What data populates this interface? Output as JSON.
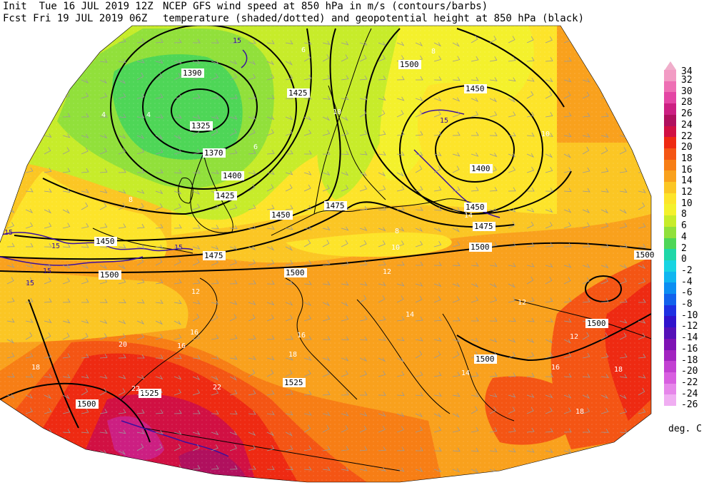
{
  "header": {
    "init_line": "Init  Tue 16 JUL 2019 12Z",
    "fcst_line": "Fcst Fri 19 JUL 2019 06Z",
    "title_line": "NCEP GFS wind speed at 850 hPa in m/s (contours/barbs)",
    "subtitle_line": "temperature (shaded/dotted) and geopotential height at 850 hPa (black)"
  },
  "colorbar": {
    "top_label": "34",
    "levels": [
      {
        "label": "32",
        "color": "#f29bc4"
      },
      {
        "label": "30",
        "color": "#ee6fb4"
      },
      {
        "label": "28",
        "color": "#e445a4"
      },
      {
        "label": "26",
        "color": "#cc1f82"
      },
      {
        "label": "24",
        "color": "#b0105e"
      },
      {
        "label": "22",
        "color": "#d11043"
      },
      {
        "label": "20",
        "color": "#ee2a12"
      },
      {
        "label": "18",
        "color": "#f45514"
      },
      {
        "label": "16",
        "color": "#f77e15"
      },
      {
        "label": "14",
        "color": "#f9a11d"
      },
      {
        "label": "12",
        "color": "#fbc624"
      },
      {
        "label": "10",
        "color": "#fde42a"
      },
      {
        "label": "8",
        "color": "#f4f12c"
      },
      {
        "label": "6",
        "color": "#c7ec2a"
      },
      {
        "label": "4",
        "color": "#91e03b"
      },
      {
        "label": "2",
        "color": "#4ed657"
      },
      {
        "label": "0",
        "color": "#1fd7a8"
      },
      {
        "label": "-2",
        "color": "#18d4e2"
      },
      {
        "label": "-4",
        "color": "#10b6f0"
      },
      {
        "label": "-6",
        "color": "#0c8ef2"
      },
      {
        "label": "-8",
        "color": "#1262ec"
      },
      {
        "label": "-10",
        "color": "#1e30e2"
      },
      {
        "label": "-12",
        "color": "#3012cc"
      },
      {
        "label": "-14",
        "color": "#5510b8"
      },
      {
        "label": "-16",
        "color": "#7e12b4"
      },
      {
        "label": "-18",
        "color": "#a224c0"
      },
      {
        "label": "-20",
        "color": "#c240d2"
      },
      {
        "label": "-22",
        "color": "#d85ee0"
      },
      {
        "label": "-24",
        "color": "#e686ea"
      },
      {
        "label": "-26",
        "color": "#f0aef2"
      }
    ],
    "units": "deg. C"
  },
  "map": {
    "height_labels": [
      {
        "text": "1390"
      },
      {
        "text": "1325"
      },
      {
        "text": "1370"
      },
      {
        "text": "1400"
      },
      {
        "text": "1425"
      },
      {
        "text": "1425"
      },
      {
        "text": "1450"
      },
      {
        "text": "1450"
      },
      {
        "text": "1475"
      },
      {
        "text": "1500"
      },
      {
        "text": "1500"
      },
      {
        "text": "1475"
      },
      {
        "text": "1500"
      },
      {
        "text": "1450"
      },
      {
        "text": "1400"
      },
      {
        "text": "1450"
      },
      {
        "text": "1475"
      },
      {
        "text": "1500"
      },
      {
        "text": "1500"
      },
      {
        "text": "1500"
      },
      {
        "text": "1525"
      },
      {
        "text": "1525"
      },
      {
        "text": "1500"
      },
      {
        "text": "1500"
      }
    ],
    "temp_labels": [
      {
        "text": "6"
      },
      {
        "text": "4"
      },
      {
        "text": "4"
      },
      {
        "text": "6"
      },
      {
        "text": "10"
      },
      {
        "text": "8"
      },
      {
        "text": "8"
      },
      {
        "text": "10"
      },
      {
        "text": "12"
      },
      {
        "text": "12"
      },
      {
        "text": "14"
      },
      {
        "text": "16"
      },
      {
        "text": "16"
      },
      {
        "text": "16"
      },
      {
        "text": "18"
      },
      {
        "text": "20"
      },
      {
        "text": "20"
      },
      {
        "text": "22"
      },
      {
        "text": "22"
      },
      {
        "text": "12"
      },
      {
        "text": "14"
      },
      {
        "text": "16"
      },
      {
        "text": "18"
      },
      {
        "text": "18"
      },
      {
        "text": "12"
      },
      {
        "text": "8"
      },
      {
        "text": "16"
      },
      {
        "text": "18"
      },
      {
        "text": "10"
      },
      {
        "text": "14"
      }
    ],
    "wind_labels": [
      {
        "text": "15"
      },
      {
        "text": "15"
      },
      {
        "text": "15"
      },
      {
        "text": "15"
      },
      {
        "text": "15"
      },
      {
        "text": "15"
      },
      {
        "text": "15"
      }
    ]
  }
}
